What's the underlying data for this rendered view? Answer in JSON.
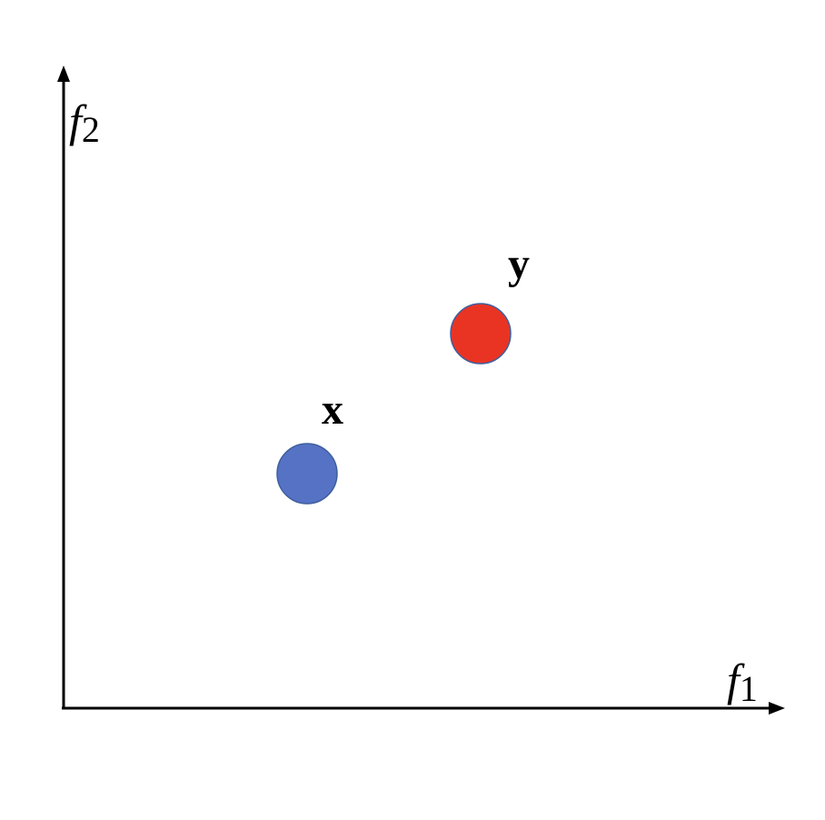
{
  "axes": {
    "x_axis": {
      "variable": "f",
      "subscript": "1"
    },
    "y_axis": {
      "variable": "f",
      "subscript": "2"
    }
  },
  "points": [
    {
      "id": "x",
      "label": "x",
      "color": "#5572C4",
      "description_shape": "circle"
    },
    {
      "id": "y",
      "label": "y",
      "color": "#E93424",
      "description_shape": "circle"
    }
  ]
}
